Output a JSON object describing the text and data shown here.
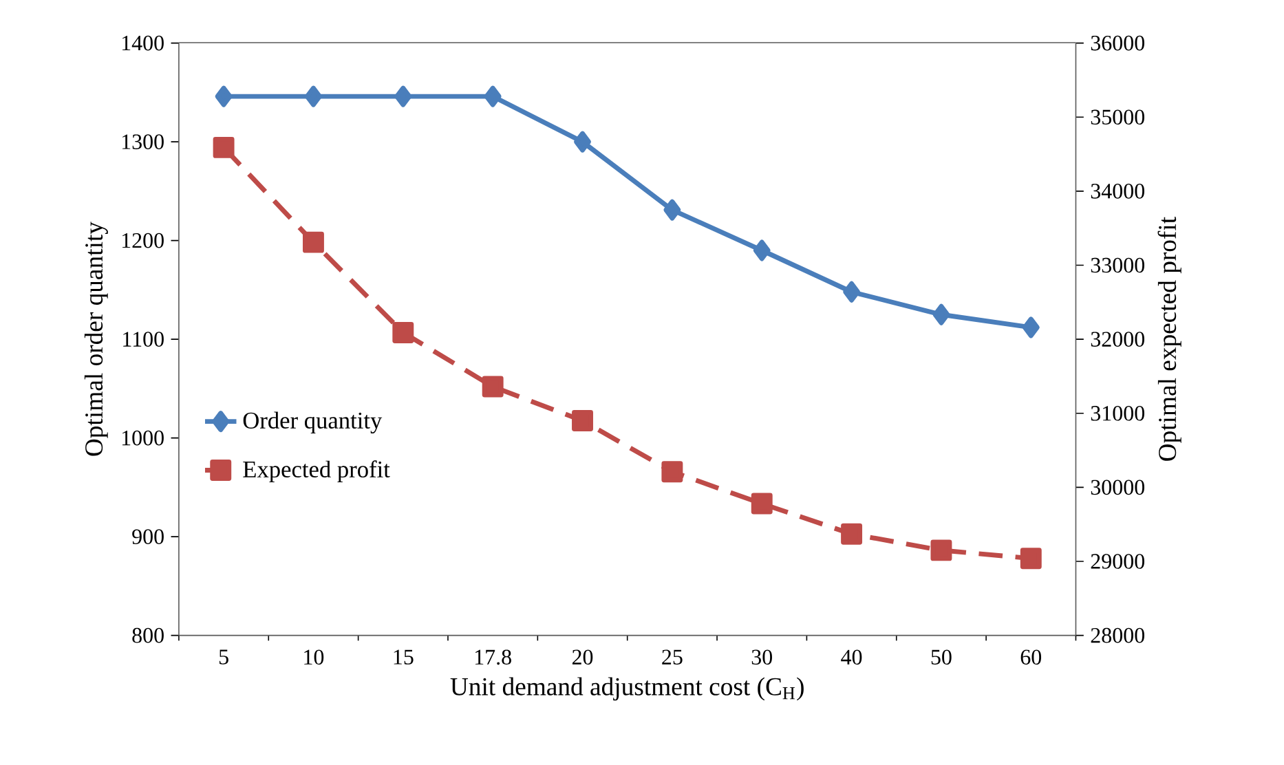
{
  "chart_data": {
    "type": "line",
    "xlabel": "Unit demand adjustment cost (C$_{H}$)",
    "ylabel": "Optimal order quantity",
    "y2label": "Optimal expected profit",
    "categories": [
      "5",
      "10",
      "15",
      "17.8",
      "20",
      "25",
      "30",
      "40",
      "50",
      "60"
    ],
    "series": [
      {
        "name": "Order quantity",
        "color": "#4a7ebb",
        "marker": "diamond",
        "line_style": "solid",
        "values": [
          1346,
          1346,
          1346,
          1346,
          1300,
          1231,
          1190,
          1148,
          1125,
          1112
        ]
      },
      {
        "name": "Expected profit",
        "color": "#be4b48",
        "marker": "square",
        "line_style": "dashed",
        "axis": "y2",
        "values": [
          34590,
          33310,
          32090,
          31360,
          30900,
          30210,
          29780,
          29370,
          29150,
          29040
        ]
      }
    ],
    "ylim": [
      800,
      1400
    ],
    "yticks": [
      800,
      900,
      1000,
      1100,
      1200,
      1300,
      1400
    ],
    "y2lim": [
      28000,
      36000
    ],
    "y2ticks": [
      28000,
      29000,
      30000,
      31000,
      32000,
      33000,
      34000,
      35000,
      36000
    ],
    "grid": false,
    "legend": "left"
  }
}
